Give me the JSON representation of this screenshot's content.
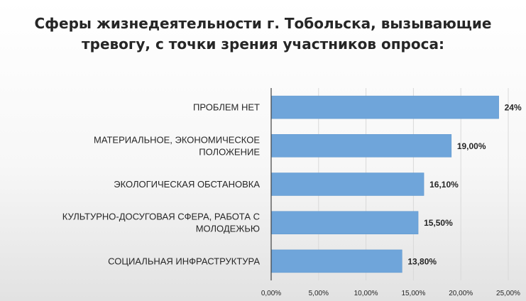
{
  "chart_data": {
    "type": "bar",
    "orientation": "horizontal",
    "title_lines": [
      "Сферы жизнедеятельности г. Тобольска, вызывающие",
      "тревогу, с точки зрения участников опроса:"
    ],
    "xlabel": "",
    "ylabel": "",
    "categories": [
      [
        "ПРОБЛЕМ НЕТ"
      ],
      [
        "МАТЕРИАЛЬНОЕ, ЭКОНОМИЧЕСКОЕ",
        "ПОЛОЖЕНИЕ"
      ],
      [
        "ЭКОЛОГИЧЕСКАЯ ОБСТАНОВКА"
      ],
      [
        "КУЛЬТУРНО-ДОСУГОВАЯ СФЕРА, РАБОТА С",
        "МОЛОДЕЖЬЮ"
      ],
      [
        "СОЦИАЛЬНАЯ ИНФРАСТРУКТУРА"
      ]
    ],
    "values": [
      24,
      19,
      16.1,
      15.5,
      13.8
    ],
    "data_labels": [
      "24%",
      "19,00%",
      "16,10%",
      "15,50%",
      "13,80%"
    ],
    "x_ticks": [
      "0,00%",
      "5,00%",
      "10,00%",
      "15,00%",
      "20,00%",
      "25,00%"
    ],
    "xlim": [
      0,
      25
    ],
    "grid": true,
    "legend": "none",
    "colors": {
      "bar": "#6fa5da",
      "bar_edge": "#5b94cc",
      "grid": "#d9d9d9",
      "axis": "#404040",
      "text": "#262626"
    }
  }
}
